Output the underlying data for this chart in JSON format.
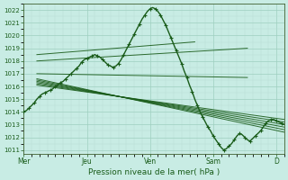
{
  "xlabel": "Pression niveau de la mer( hPa )",
  "ylim": [
    1010.7,
    1022.5
  ],
  "yticks": [
    1011,
    1012,
    1013,
    1014,
    1015,
    1016,
    1017,
    1018,
    1019,
    1020,
    1021,
    1022
  ],
  "background_color": "#c8ece4",
  "grid_color_major": "#9ecfbf",
  "grid_color_minor": "#b8ddd2",
  "line_color": "#1a5c1a",
  "day_labels": [
    "Mer",
    "Jeu",
    "Ven",
    "Sam",
    "D"
  ],
  "day_positions": [
    0,
    24,
    48,
    72,
    96
  ],
  "xlim": [
    0,
    99
  ],
  "n_points": 100,
  "main_line": [
    1014.0,
    1014.1,
    1014.3,
    1014.5,
    1014.7,
    1015.0,
    1015.2,
    1015.4,
    1015.5,
    1015.6,
    1015.7,
    1015.8,
    1016.0,
    1016.1,
    1016.3,
    1016.4,
    1016.6,
    1016.8,
    1017.0,
    1017.2,
    1017.4,
    1017.6,
    1017.9,
    1018.1,
    1018.2,
    1018.3,
    1018.4,
    1018.5,
    1018.4,
    1018.3,
    1018.1,
    1017.9,
    1017.7,
    1017.6,
    1017.5,
    1017.6,
    1017.8,
    1018.1,
    1018.5,
    1018.9,
    1019.3,
    1019.7,
    1020.1,
    1020.5,
    1020.9,
    1021.3,
    1021.6,
    1021.9,
    1022.1,
    1022.2,
    1022.1,
    1021.9,
    1021.6,
    1021.2,
    1020.8,
    1020.3,
    1019.8,
    1019.3,
    1018.8,
    1018.3,
    1017.8,
    1017.2,
    1016.7,
    1016.1,
    1015.6,
    1015.0,
    1014.5,
    1014.0,
    1013.6,
    1013.2,
    1012.8,
    1012.5,
    1012.1,
    1011.8,
    1011.5,
    1011.2,
    1011.0,
    1011.1,
    1011.3,
    1011.5,
    1011.8,
    1012.1,
    1012.3,
    1012.2,
    1012.0,
    1011.8,
    1011.7,
    1011.9,
    1012.1,
    1012.3,
    1012.5,
    1012.8,
    1013.1,
    1013.3,
    1013.4,
    1013.4,
    1013.3,
    1013.2,
    1013.1,
    1013.0
  ],
  "ensemble_starts": [
    [
      5,
      1016.0
    ],
    [
      5,
      1016.5
    ],
    [
      5,
      1017.0
    ],
    [
      5,
      1017.5
    ],
    [
      5,
      1018.0
    ],
    [
      5,
      1018.5
    ],
    [
      5,
      1016.2
    ],
    [
      5,
      1017.8
    ],
    [
      5,
      1015.8
    ]
  ],
  "ensemble_ends": [
    [
      99,
      1013.4
    ],
    [
      99,
      1013.2
    ],
    [
      99,
      1013.0
    ],
    [
      99,
      1012.8
    ],
    [
      85,
      1016.7
    ],
    [
      99,
      1019.0
    ],
    [
      99,
      1014.5
    ],
    [
      99,
      1011.0
    ],
    [
      99,
      1012.0
    ]
  ]
}
